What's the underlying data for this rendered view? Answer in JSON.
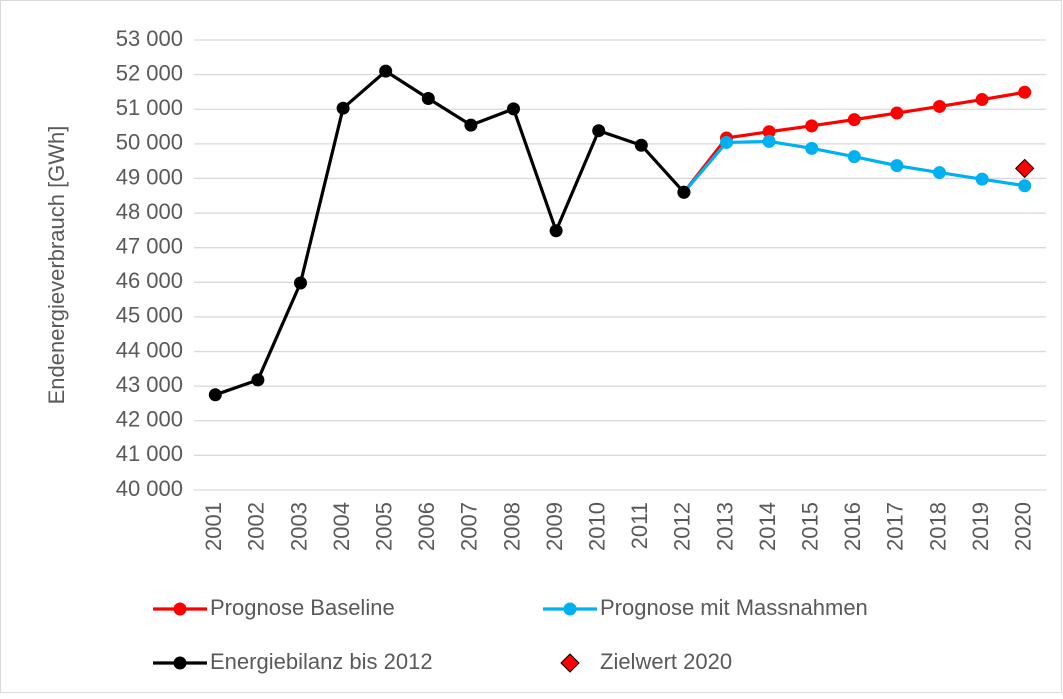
{
  "chart_data": {
    "type": "line",
    "y_label": "Endenergieverbrauch [GWh]",
    "categories": [
      "2001",
      "2002",
      "2003",
      "2004",
      "2005",
      "2006",
      "2007",
      "2008",
      "2009",
      "2010",
      "2011",
      "2012",
      "2013",
      "2014",
      "2015",
      "2016",
      "2017",
      "2018",
      "2019",
      "2020"
    ],
    "series": [
      {
        "name": "Prognose Baseline",
        "color": "#ff0000",
        "marker": "circle",
        "line": true,
        "values": [
          null,
          null,
          null,
          null,
          null,
          null,
          null,
          null,
          null,
          null,
          null,
          48600,
          50170,
          50350,
          50520,
          50700,
          50890,
          51080,
          51280,
          51490
        ]
      },
      {
        "name": "Prognose mit Massnahmen",
        "color": "#00b0f0",
        "marker": "circle",
        "line": true,
        "values": [
          null,
          null,
          null,
          null,
          null,
          null,
          null,
          null,
          null,
          null,
          null,
          48600,
          50040,
          50070,
          49870,
          49630,
          49370,
          49170,
          48980,
          48790
        ]
      },
      {
        "name": "Energiebilanz bis 2012",
        "color": "#000000",
        "marker": "circle",
        "line": true,
        "values": [
          42750,
          43180,
          45980,
          51030,
          52100,
          51310,
          50540,
          51010,
          47490,
          50380,
          49960,
          48600,
          null,
          null,
          null,
          null,
          null,
          null,
          null,
          null
        ]
      },
      {
        "name": "Zielwert 2020",
        "color": "#ff0000",
        "marker": "diamond",
        "line": false,
        "values": [
          null,
          null,
          null,
          null,
          null,
          null,
          null,
          null,
          null,
          null,
          null,
          null,
          null,
          null,
          null,
          null,
          null,
          null,
          null,
          49290
        ]
      }
    ],
    "ylim": [
      40000,
      53000
    ],
    "yticks": [
      {
        "value": 40000,
        "label": "40 000"
      },
      {
        "value": 41000,
        "label": "41 000"
      },
      {
        "value": 42000,
        "label": "42 000"
      },
      {
        "value": 43000,
        "label": "43 000"
      },
      {
        "value": 44000,
        "label": "44 000"
      },
      {
        "value": 45000,
        "label": "45 000"
      },
      {
        "value": 46000,
        "label": "46 000"
      },
      {
        "value": 47000,
        "label": "47 000"
      },
      {
        "value": 48000,
        "label": "48 000"
      },
      {
        "value": 49000,
        "label": "49 000"
      },
      {
        "value": 50000,
        "label": "50 000"
      },
      {
        "value": 51000,
        "label": "51 000"
      },
      {
        "value": 52000,
        "label": "52 000"
      },
      {
        "value": 53000,
        "label": "53 000"
      }
    ],
    "grid": true,
    "legend": "bottom"
  }
}
